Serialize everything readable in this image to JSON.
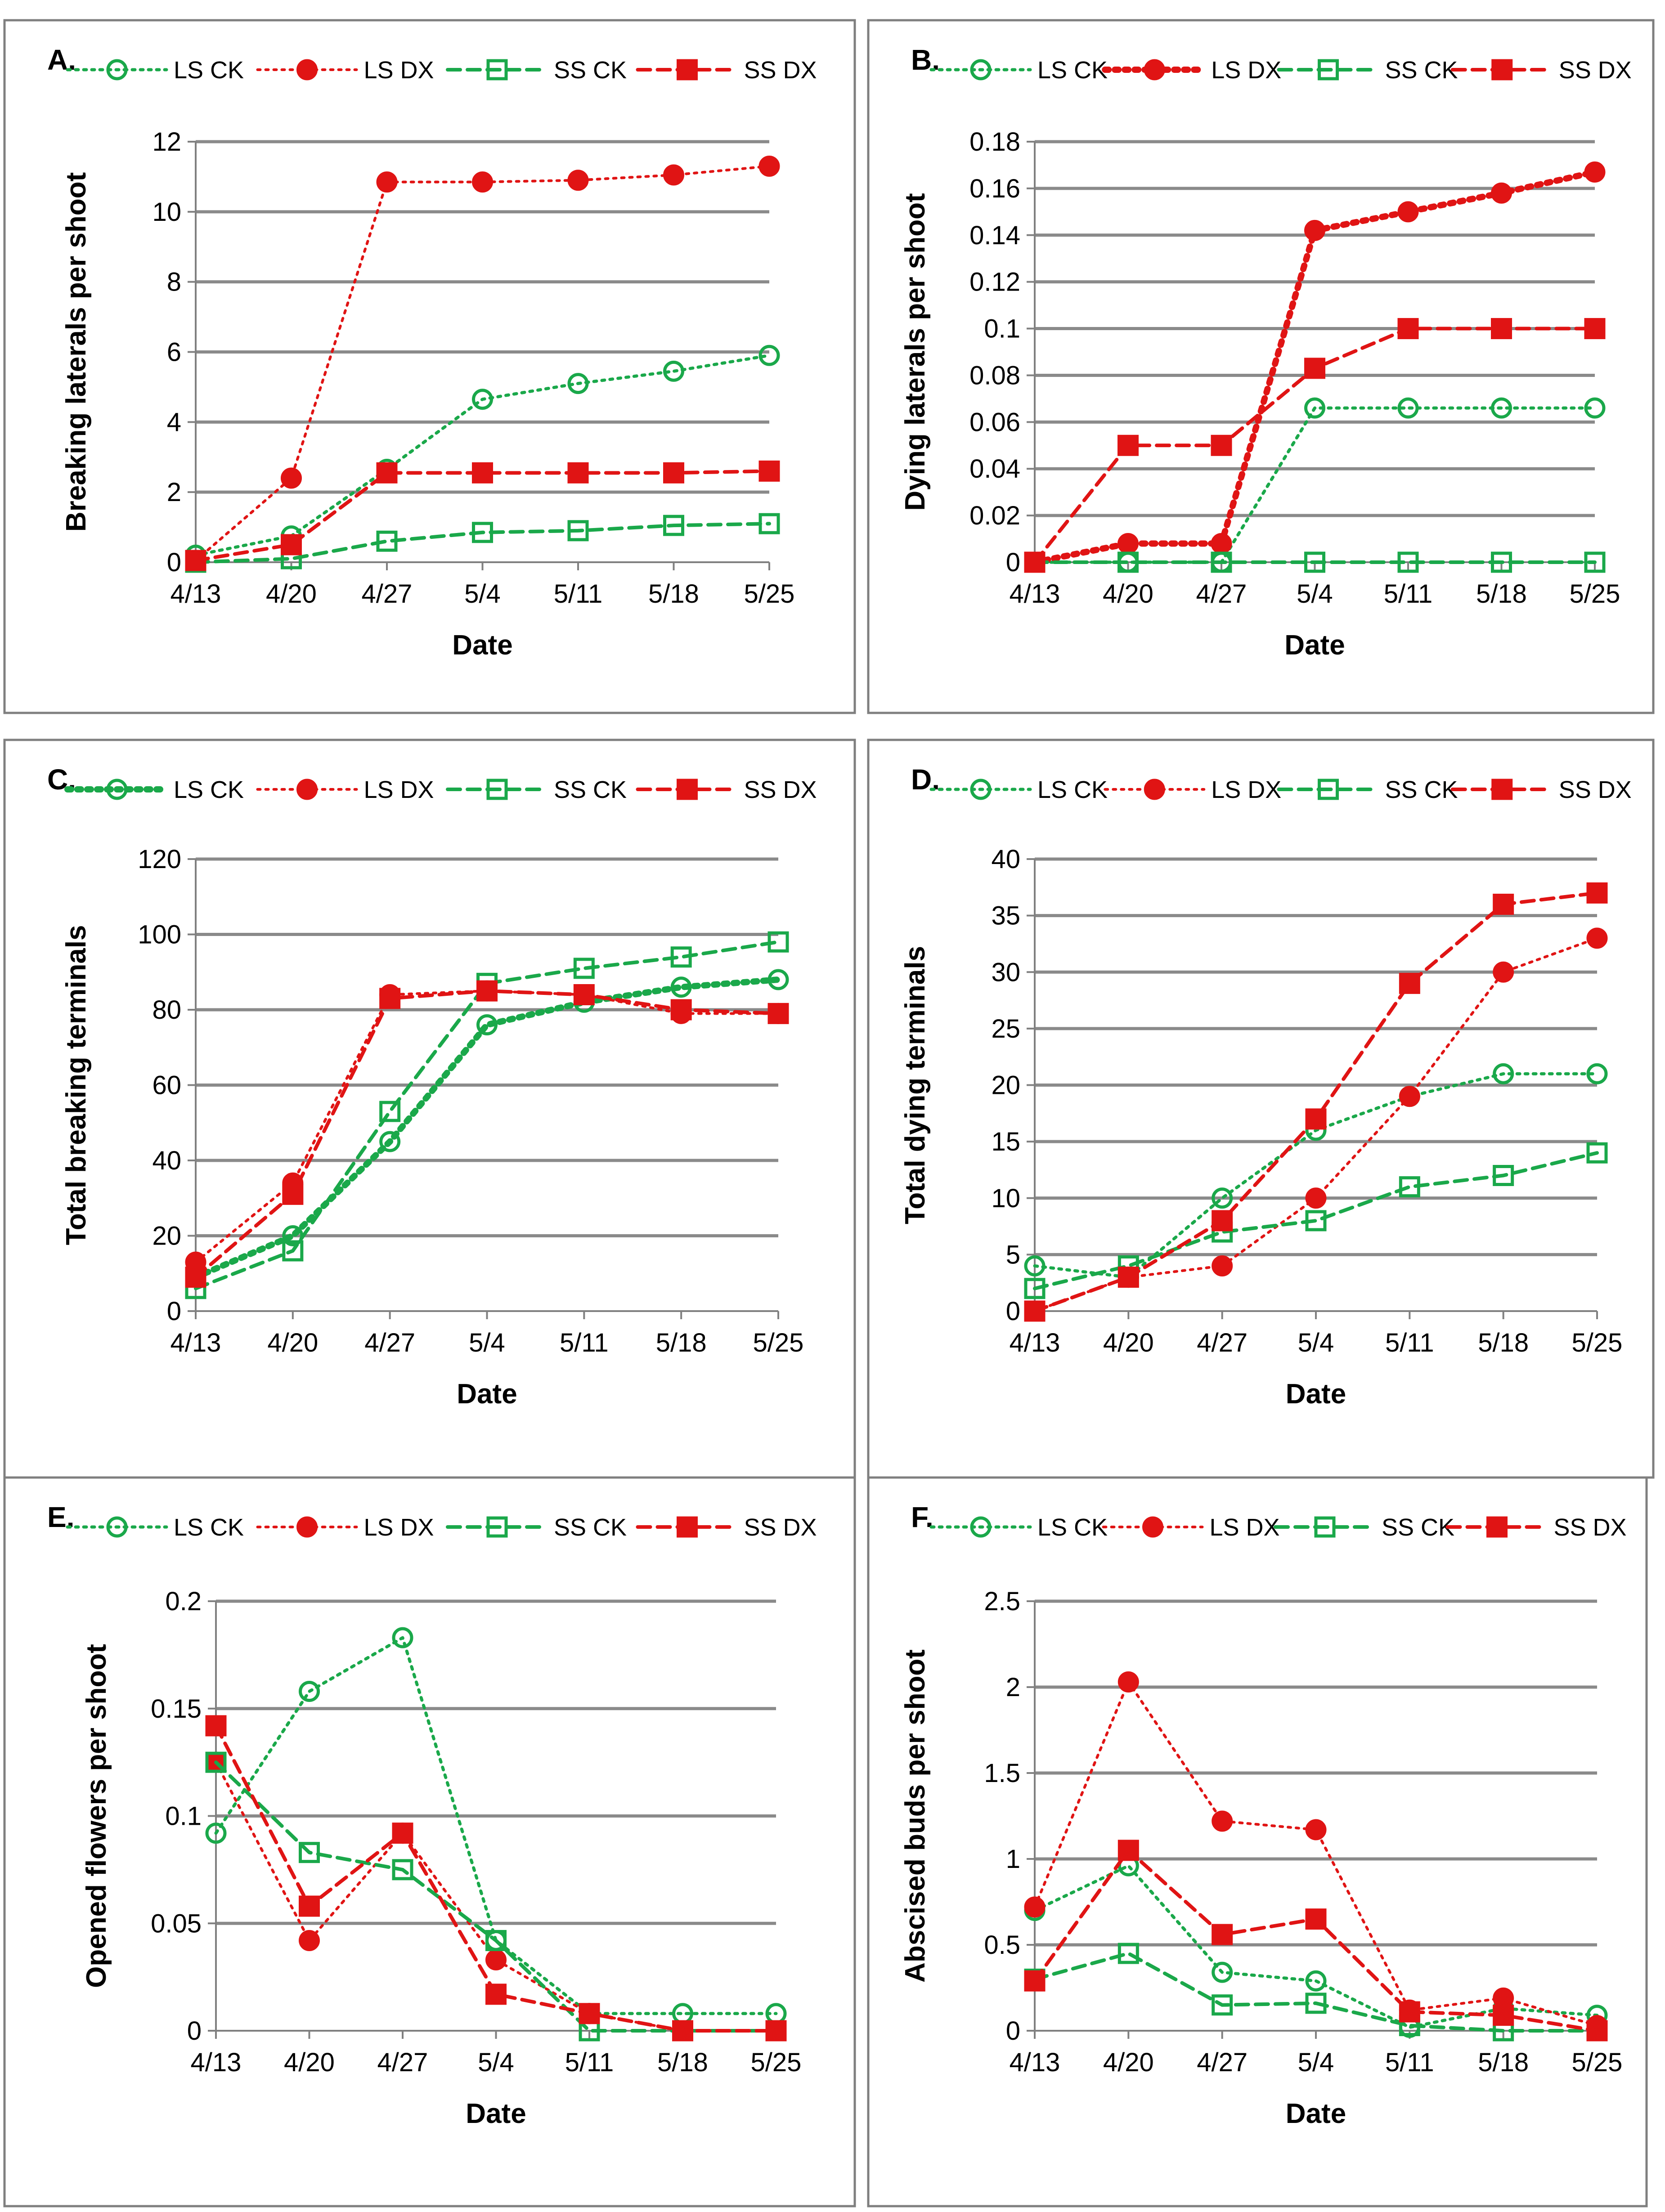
{
  "colors": {
    "green": "#1aa84a",
    "red": "#e01414"
  },
  "chart_data": [
    {
      "type": "line",
      "panel": "A",
      "title": "",
      "xlabel": "Date",
      "ylabel": "Breaking laterals per shoot",
      "categories": [
        "4/13",
        "4/20",
        "4/27",
        "5/4",
        "5/11",
        "5/18",
        "5/25"
      ],
      "ylim": [
        0,
        12
      ],
      "yticks": [
        0,
        2,
        4,
        6,
        8,
        10,
        12
      ],
      "ytick_labels": [
        "0",
        "2",
        "4",
        "6",
        "8",
        "10",
        "12"
      ],
      "grid": true,
      "legend_position": "top",
      "series": [
        {
          "name": "LS CK",
          "values": [
            0.2,
            0.75,
            2.65,
            4.65,
            5.1,
            5.45,
            5.9
          ]
        },
        {
          "name": "LS DX",
          "values": [
            0.05,
            2.4,
            10.85,
            10.85,
            10.9,
            11.05,
            11.3
          ]
        },
        {
          "name": "SS CK",
          "values": [
            0.0,
            0.1,
            0.6,
            0.85,
            0.9,
            1.05,
            1.1
          ]
        },
        {
          "name": "SS DX",
          "values": [
            0.05,
            0.5,
            2.55,
            2.55,
            2.55,
            2.55,
            2.6
          ]
        }
      ]
    },
    {
      "type": "line",
      "panel": "B",
      "title": "",
      "xlabel": "Date",
      "ylabel": "Dying laterals per shoot",
      "categories": [
        "4/13",
        "4/20",
        "4/27",
        "5/4",
        "5/11",
        "5/18",
        "5/25"
      ],
      "ylim": [
        0,
        0.18
      ],
      "yticks": [
        0,
        0.02,
        0.04,
        0.06,
        0.08,
        0.1,
        0.12,
        0.14,
        0.16,
        0.18
      ],
      "ytick_labels": [
        "0",
        "0.02",
        "0.04",
        "0.06",
        "0.08",
        "0.1",
        "0.12",
        "0.14",
        "0.16",
        "0.18"
      ],
      "grid": true,
      "legend_position": "top",
      "series": [
        {
          "name": "LS CK",
          "values": [
            0,
            0,
            0,
            0.066,
            0.066,
            0.066,
            0.066
          ]
        },
        {
          "name": "LS DX",
          "values": [
            0,
            0.008,
            0.008,
            0.142,
            0.15,
            0.158,
            0.167
          ]
        },
        {
          "name": "SS CK",
          "values": [
            0,
            0,
            0,
            0,
            0,
            0,
            0
          ]
        },
        {
          "name": "SS DX",
          "values": [
            0,
            0.05,
            0.05,
            0.083,
            0.1,
            0.1,
            0.1
          ]
        }
      ]
    },
    {
      "type": "line",
      "panel": "C",
      "title": "",
      "xlabel": "Date",
      "ylabel": "Total breaking terminals",
      "categories": [
        "4/13",
        "4/20",
        "4/27",
        "5/4",
        "5/11",
        "5/18",
        "5/25"
      ],
      "ylim": [
        0,
        120
      ],
      "yticks": [
        0,
        20,
        40,
        60,
        80,
        100,
        120
      ],
      "ytick_labels": [
        "0",
        "20",
        "40",
        "60",
        "80",
        "100",
        "120"
      ],
      "grid": true,
      "legend_position": "top",
      "series": [
        {
          "name": "LS CK",
          "values": [
            9,
            20,
            45,
            76,
            82,
            86,
            88
          ]
        },
        {
          "name": "LS DX",
          "values": [
            13,
            34,
            84,
            85,
            84,
            79,
            79
          ]
        },
        {
          "name": "SS CK",
          "values": [
            6,
            16,
            53,
            87,
            91,
            94,
            98
          ]
        },
        {
          "name": "SS DX",
          "values": [
            9,
            31,
            83,
            85,
            84,
            80,
            79
          ]
        }
      ]
    },
    {
      "type": "line",
      "panel": "D",
      "title": "",
      "xlabel": "Date",
      "ylabel": "Total dying terminals",
      "categories": [
        "4/13",
        "4/20",
        "4/27",
        "5/4",
        "5/11",
        "5/18",
        "5/25"
      ],
      "ylim": [
        0,
        40
      ],
      "yticks": [
        0,
        5,
        10,
        15,
        20,
        25,
        30,
        35,
        40
      ],
      "ytick_labels": [
        "0",
        "5",
        "10",
        "15",
        "20",
        "25",
        "30",
        "35",
        "40"
      ],
      "grid": true,
      "legend_position": "top",
      "series": [
        {
          "name": "LS CK",
          "values": [
            4,
            3,
            10,
            16,
            19,
            21,
            21
          ]
        },
        {
          "name": "LS DX",
          "values": [
            0,
            3,
            4,
            10,
            19,
            30,
            33
          ]
        },
        {
          "name": "SS CK",
          "values": [
            2,
            4,
            7,
            8,
            11,
            12,
            14
          ]
        },
        {
          "name": "SS DX",
          "values": [
            0,
            3,
            8,
            17,
            29,
            36,
            37
          ]
        }
      ]
    },
    {
      "type": "line",
      "panel": "E",
      "title": "",
      "xlabel": "Date",
      "ylabel": "Opened flowers per shoot",
      "categories": [
        "4/13",
        "4/20",
        "4/27",
        "5/4",
        "5/11",
        "5/18",
        "5/25"
      ],
      "ylim": [
        0,
        0.2
      ],
      "yticks": [
        0,
        0.05,
        0.1,
        0.15,
        0.2
      ],
      "ytick_labels": [
        "0",
        "0.05",
        "0.1",
        "0.15",
        "0.2"
      ],
      "grid": true,
      "legend_position": "top",
      "series": [
        {
          "name": "LS CK",
          "values": [
            0.092,
            0.158,
            0.183,
            0.042,
            0.008,
            0.008,
            0.008
          ]
        },
        {
          "name": "LS DX",
          "values": [
            0.125,
            0.042,
            0.092,
            0.033,
            0.008,
            0,
            0
          ]
        },
        {
          "name": "SS CK",
          "values": [
            0.125,
            0.083,
            0.075,
            0.042,
            0,
            0,
            0
          ]
        },
        {
          "name": "SS DX",
          "values": [
            0.142,
            0.058,
            0.092,
            0.017,
            0.008,
            0,
            0
          ]
        }
      ]
    },
    {
      "type": "line",
      "panel": "F",
      "title": "",
      "xlabel": "Date",
      "ylabel": "Abscised buds per shoot",
      "categories": [
        "4/13",
        "4/20",
        "4/27",
        "5/4",
        "5/11",
        "5/18",
        "5/25"
      ],
      "ylim": [
        0,
        2.5
      ],
      "yticks": [
        0,
        0.5,
        1,
        1.5,
        2,
        2.5
      ],
      "ytick_labels": [
        "0",
        "0.5",
        "1",
        "1.5",
        "2",
        "2.5"
      ],
      "grid": true,
      "legend_position": "top",
      "series": [
        {
          "name": "LS CK",
          "values": [
            0.7,
            0.96,
            0.34,
            0.29,
            0.02,
            0.13,
            0.09
          ]
        },
        {
          "name": "LS DX",
          "values": [
            0.72,
            2.03,
            1.22,
            1.17,
            0.12,
            0.19,
            0.03
          ]
        },
        {
          "name": "SS CK",
          "values": [
            0.3,
            0.45,
            0.15,
            0.16,
            0.03,
            0,
            0
          ]
        },
        {
          "name": "SS DX",
          "values": [
            0.29,
            1.05,
            0.56,
            0.65,
            0.11,
            0.09,
            0
          ]
        }
      ]
    }
  ]
}
